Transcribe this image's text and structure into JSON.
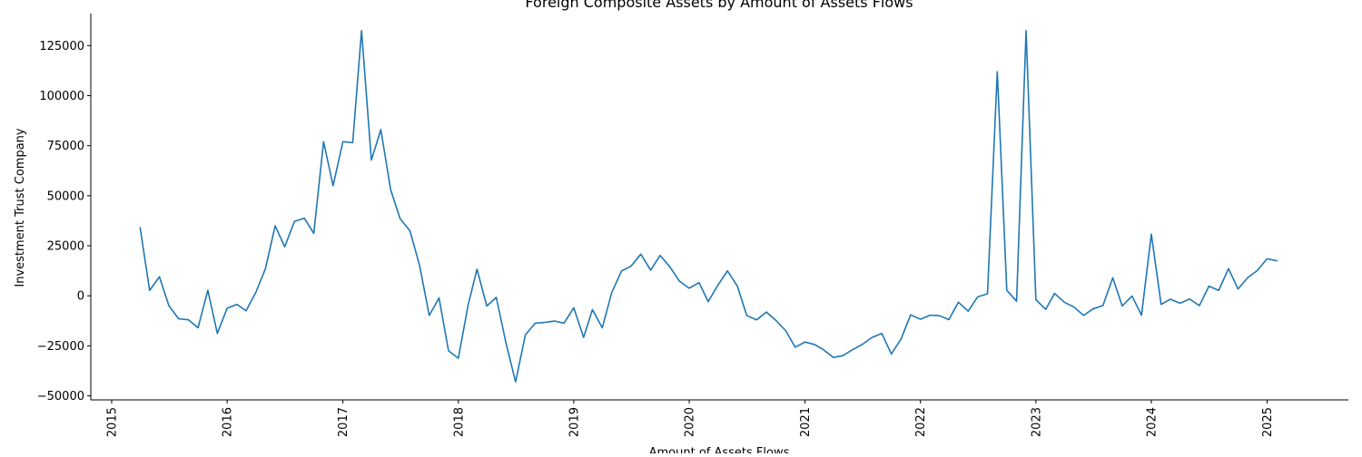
{
  "chart_data": {
    "type": "line",
    "title": "Foreign Composite Assets by Amount of Assets Flows",
    "xlabel": "Amount of Assets Flows",
    "ylabel": "Investment Trust Company",
    "x_axis_type": "date",
    "xlim": [
      "2014-10-27",
      "2025-09-15"
    ],
    "ylim": [
      -52000,
      141000
    ],
    "x_ticks": [
      {
        "date": "2015-01-01",
        "label": "2015"
      },
      {
        "date": "2016-01-01",
        "label": "2016"
      },
      {
        "date": "2017-01-01",
        "label": "2017"
      },
      {
        "date": "2018-01-01",
        "label": "2018"
      },
      {
        "date": "2019-01-01",
        "label": "2019"
      },
      {
        "date": "2020-01-01",
        "label": "2020"
      },
      {
        "date": "2021-01-01",
        "label": "2021"
      },
      {
        "date": "2022-01-01",
        "label": "2022"
      },
      {
        "date": "2023-01-01",
        "label": "2023"
      },
      {
        "date": "2024-01-01",
        "label": "2024"
      },
      {
        "date": "2025-01-01",
        "label": "2025"
      }
    ],
    "y_ticks": [
      {
        "value": 125000,
        "label": "125000"
      },
      {
        "value": 100000,
        "label": "100000"
      },
      {
        "value": 75000,
        "label": "75000"
      },
      {
        "value": 50000,
        "label": "50000"
      },
      {
        "value": 25000,
        "label": "25000"
      },
      {
        "value": 0,
        "label": "0"
      },
      {
        "value": -25000,
        "label": "−25000"
      },
      {
        "value": -50000,
        "label": "−50000"
      }
    ],
    "grid": false,
    "legend": "none",
    "series": [
      {
        "color": "#1f77b4",
        "points": [
          [
            "2015-04-01",
            34000
          ],
          [
            "2015-05-01",
            2700
          ],
          [
            "2015-06-01",
            9500
          ],
          [
            "2015-07-01",
            -5000
          ],
          [
            "2015-08-01",
            -11500
          ],
          [
            "2015-09-01",
            -12000
          ],
          [
            "2015-10-01",
            -16000
          ],
          [
            "2015-11-01",
            2800
          ],
          [
            "2015-12-01",
            -18800
          ],
          [
            "2016-01-01",
            -6200
          ],
          [
            "2016-02-01",
            -4300
          ],
          [
            "2016-03-01",
            -7500
          ],
          [
            "2016-04-01",
            1800
          ],
          [
            "2016-05-01",
            13500
          ],
          [
            "2016-06-01",
            35000
          ],
          [
            "2016-07-01",
            24500
          ],
          [
            "2016-08-01",
            37200
          ],
          [
            "2016-09-01",
            38800
          ],
          [
            "2016-10-01",
            31200
          ],
          [
            "2016-11-01",
            77000
          ],
          [
            "2016-12-01",
            55000
          ],
          [
            "2017-01-01",
            77000
          ],
          [
            "2017-02-01",
            76500
          ],
          [
            "2017-03-01",
            132500
          ],
          [
            "2017-04-01",
            67800
          ],
          [
            "2017-05-01",
            83000
          ],
          [
            "2017-06-01",
            53000
          ],
          [
            "2017-07-01",
            38500
          ],
          [
            "2017-08-01",
            32500
          ],
          [
            "2017-09-01",
            14800
          ],
          [
            "2017-10-01",
            -9800
          ],
          [
            "2017-11-01",
            -1100
          ],
          [
            "2017-12-01",
            -27500
          ],
          [
            "2018-01-01",
            -31200
          ],
          [
            "2018-02-01",
            -4600
          ],
          [
            "2018-03-01",
            13300
          ],
          [
            "2018-04-01",
            -5100
          ],
          [
            "2018-05-01",
            -800
          ],
          [
            "2018-06-01",
            -23800
          ],
          [
            "2018-07-01",
            -43000
          ],
          [
            "2018-08-01",
            -19500
          ],
          [
            "2018-09-01",
            -13700
          ],
          [
            "2018-10-01",
            -13300
          ],
          [
            "2018-11-01",
            -12600
          ],
          [
            "2018-12-01",
            -13700
          ],
          [
            "2019-01-01",
            -6000
          ],
          [
            "2019-02-01",
            -20800
          ],
          [
            "2019-03-01",
            -6900
          ],
          [
            "2019-04-01",
            -16000
          ],
          [
            "2019-05-01",
            1600
          ],
          [
            "2019-06-01",
            12400
          ],
          [
            "2019-07-01",
            14800
          ],
          [
            "2019-08-01",
            20800
          ],
          [
            "2019-09-01",
            12800
          ],
          [
            "2019-10-01",
            20200
          ],
          [
            "2019-11-01",
            14400
          ],
          [
            "2019-12-01",
            7300
          ],
          [
            "2020-01-01",
            3800
          ],
          [
            "2020-02-01",
            6600
          ],
          [
            "2020-03-01",
            -2900
          ],
          [
            "2020-04-01",
            5400
          ],
          [
            "2020-05-01",
            12500
          ],
          [
            "2020-06-01",
            4900
          ],
          [
            "2020-07-01",
            -9900
          ],
          [
            "2020-08-01",
            -12000
          ],
          [
            "2020-09-01",
            -8100
          ],
          [
            "2020-10-01",
            -12300
          ],
          [
            "2020-11-01",
            -17400
          ],
          [
            "2020-12-01",
            -25700
          ],
          [
            "2021-01-01",
            -23100
          ],
          [
            "2021-02-01",
            -24400
          ],
          [
            "2021-03-01",
            -27000
          ],
          [
            "2021-04-01",
            -30800
          ],
          [
            "2021-05-01",
            -29900
          ],
          [
            "2021-06-01",
            -26900
          ],
          [
            "2021-07-01",
            -24300
          ],
          [
            "2021-08-01",
            -20800
          ],
          [
            "2021-09-01",
            -18800
          ],
          [
            "2021-10-01",
            -29100
          ],
          [
            "2021-11-01",
            -21500
          ],
          [
            "2021-12-01",
            -9500
          ],
          [
            "2022-01-01",
            -11700
          ],
          [
            "2022-02-01",
            -9700
          ],
          [
            "2022-03-01",
            -9900
          ],
          [
            "2022-04-01",
            -11900
          ],
          [
            "2022-05-01",
            -3200
          ],
          [
            "2022-06-01",
            -7700
          ],
          [
            "2022-07-01",
            -500
          ],
          [
            "2022-08-01",
            1000
          ],
          [
            "2022-09-01",
            112000
          ],
          [
            "2022-10-01",
            2800
          ],
          [
            "2022-11-01",
            -2700
          ],
          [
            "2022-12-01",
            132500
          ],
          [
            "2023-01-01",
            -1900
          ],
          [
            "2023-02-01",
            -6800
          ],
          [
            "2023-03-01",
            1200
          ],
          [
            "2023-04-01",
            -3200
          ],
          [
            "2023-05-01",
            -5600
          ],
          [
            "2023-06-01",
            -9800
          ],
          [
            "2023-07-01",
            -6500
          ],
          [
            "2023-08-01",
            -4900
          ],
          [
            "2023-09-01",
            9000
          ],
          [
            "2023-10-01",
            -5100
          ],
          [
            "2023-11-01",
            -100
          ],
          [
            "2023-12-01",
            -9700
          ],
          [
            "2024-01-01",
            30800
          ],
          [
            "2024-02-01",
            -4300
          ],
          [
            "2024-03-01",
            -1700
          ],
          [
            "2024-04-01",
            -3700
          ],
          [
            "2024-05-01",
            -1600
          ],
          [
            "2024-06-01",
            -4900
          ],
          [
            "2024-07-01",
            4800
          ],
          [
            "2024-08-01",
            2700
          ],
          [
            "2024-09-01",
            13600
          ],
          [
            "2024-10-01",
            3400
          ],
          [
            "2024-11-01",
            9100
          ],
          [
            "2024-12-01",
            12600
          ],
          [
            "2025-01-01",
            18500
          ],
          [
            "2025-02-01",
            17500
          ]
        ]
      }
    ]
  }
}
